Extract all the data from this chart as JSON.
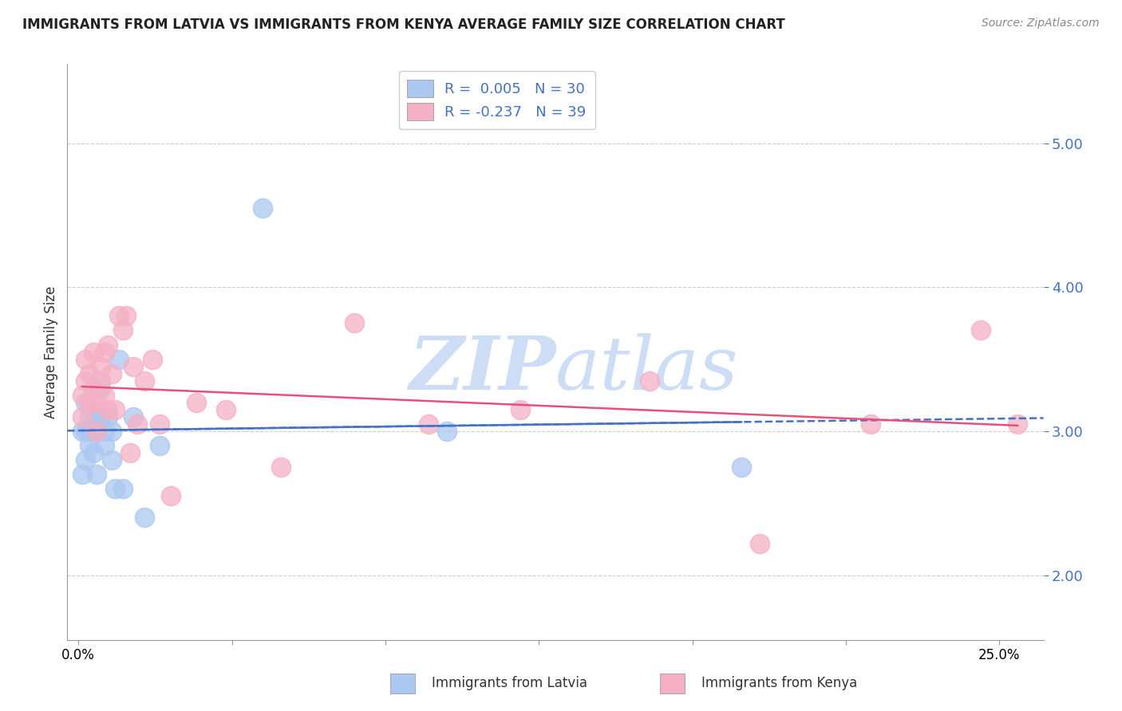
{
  "title": "IMMIGRANTS FROM LATVIA VS IMMIGRANTS FROM KENYA AVERAGE FAMILY SIZE CORRELATION CHART",
  "source": "Source: ZipAtlas.com",
  "ylabel": "Average Family Size",
  "yticks": [
    2.0,
    3.0,
    4.0,
    5.0
  ],
  "ylim": [
    1.55,
    5.55
  ],
  "xlim": [
    -0.003,
    0.262
  ],
  "latvia_color": "#aac8f0",
  "kenya_color": "#f5b0c5",
  "latvia_line_color": "#4472c4",
  "kenya_line_color": "#e8507a",
  "legend_text_color": "#4472c4",
  "background_color": "#ffffff",
  "grid_color": "#cccccc",
  "watermark_color": "#ccddf5",
  "latvia_R": 0.005,
  "latvia_N": 30,
  "kenya_R": -0.237,
  "kenya_N": 39,
  "latvia_x": [
    0.001,
    0.001,
    0.002,
    0.002,
    0.002,
    0.003,
    0.003,
    0.003,
    0.003,
    0.004,
    0.004,
    0.004,
    0.005,
    0.005,
    0.006,
    0.006,
    0.007,
    0.007,
    0.008,
    0.009,
    0.009,
    0.01,
    0.011,
    0.012,
    0.015,
    0.018,
    0.022,
    0.05,
    0.1,
    0.18
  ],
  "latvia_y": [
    3.0,
    2.7,
    3.2,
    3.0,
    2.8,
    3.1,
    2.9,
    3.2,
    3.0,
    3.15,
    3.0,
    2.85,
    3.1,
    2.7,
    3.3,
    3.1,
    3.0,
    2.9,
    3.1,
    3.0,
    2.8,
    2.6,
    3.5,
    2.6,
    3.1,
    2.4,
    2.9,
    4.55,
    3.0,
    2.75
  ],
  "kenya_x": [
    0.001,
    0.001,
    0.002,
    0.002,
    0.003,
    0.003,
    0.004,
    0.004,
    0.005,
    0.005,
    0.006,
    0.006,
    0.007,
    0.007,
    0.008,
    0.008,
    0.009,
    0.01,
    0.011,
    0.012,
    0.013,
    0.014,
    0.015,
    0.016,
    0.018,
    0.02,
    0.022,
    0.025,
    0.032,
    0.04,
    0.055,
    0.075,
    0.095,
    0.12,
    0.155,
    0.185,
    0.215,
    0.245,
    0.255
  ],
  "kenya_y": [
    3.25,
    3.1,
    3.35,
    3.5,
    3.2,
    3.4,
    3.3,
    3.55,
    3.2,
    3.0,
    3.35,
    3.45,
    3.55,
    3.25,
    3.15,
    3.6,
    3.4,
    3.15,
    3.8,
    3.7,
    3.8,
    2.85,
    3.45,
    3.05,
    3.35,
    3.5,
    3.05,
    2.55,
    3.2,
    3.15,
    2.75,
    3.75,
    3.05,
    3.15,
    3.35,
    2.22,
    3.05,
    3.7,
    3.05
  ]
}
